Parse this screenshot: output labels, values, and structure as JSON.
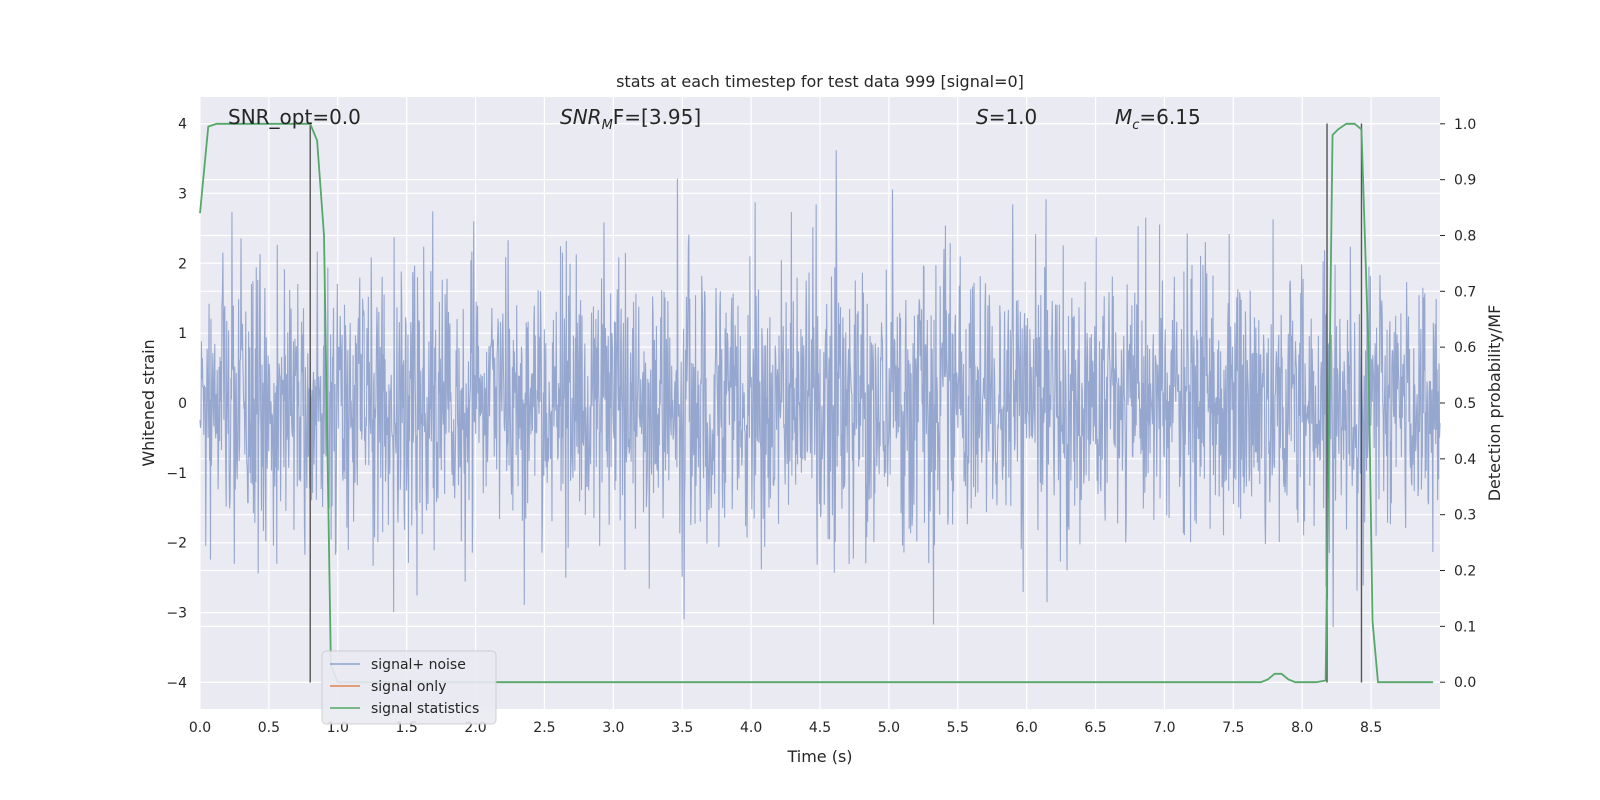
{
  "chart_data": {
    "type": "line",
    "title": "stats at each timestep for test data 999 [signal=0]",
    "xlabel": "Time (s)",
    "ylabel_left": "Whitened strain",
    "ylabel_right": "Detection probability/MF",
    "xlim": [
      0.0,
      9.0
    ],
    "ylim_left": [
      -4.38,
      4.38
    ],
    "ylim_right": [
      -0.048,
      1.048
    ],
    "x_ticks": [
      "0.0",
      "0.5",
      "1.0",
      "1.5",
      "2.0",
      "2.5",
      "3.0",
      "3.5",
      "4.0",
      "4.5",
      "5.0",
      "5.5",
      "6.0",
      "6.5",
      "7.0",
      "7.5",
      "8.0",
      "8.5"
    ],
    "y_ticks_left": [
      "4",
      "3",
      "2",
      "1",
      "0",
      "−1",
      "−2",
      "−3",
      "−4"
    ],
    "y_ticks_right": [
      "1.0",
      "0.9",
      "0.8",
      "0.7",
      "0.6",
      "0.5",
      "0.4",
      "0.3",
      "0.2",
      "0.1",
      "0.0"
    ],
    "grid": true,
    "legend_position": "lower-left",
    "annotations": {
      "snr_opt": "SNR_opt=0.0",
      "snr_mf_main": "SNR",
      "snr_mf_sub": "M",
      "snr_mf_rest": "F=[3.95]",
      "s_main": "S",
      "s_rest": "=1.0",
      "mc_main": "M",
      "mc_sub": "c",
      "mc_rest": "=6.15"
    },
    "series": [
      {
        "name": "signal+ noise",
        "color": "#8da0cb",
        "description_axis": "left",
        "amplitude_range": [
          -4.0,
          4.0
        ]
      },
      {
        "name": "signal only",
        "color": "#dd8452",
        "description_axis": "left"
      },
      {
        "name": "signal statistics",
        "color": "#55a868",
        "axis": "right",
        "x": [
          0.0,
          0.06,
          0.12,
          0.2,
          0.4,
          0.6,
          0.75,
          0.8,
          0.85,
          0.9,
          0.95,
          1.0,
          2.0,
          3.0,
          4.0,
          5.0,
          6.0,
          7.0,
          7.7,
          7.75,
          7.8,
          7.85,
          7.9,
          7.95,
          8.0,
          8.1,
          8.17,
          8.22,
          8.26,
          8.32,
          8.38,
          8.43,
          8.48,
          8.51,
          8.55,
          8.6,
          8.95
        ],
        "values": [
          0.84,
          0.995,
          1.0,
          1.0,
          1.0,
          1.0,
          1.0,
          1.0,
          0.97,
          0.8,
          0.03,
          0.0,
          0.0,
          0.0,
          0.0,
          0.0,
          0.0,
          0.0,
          0.0,
          0.005,
          0.015,
          0.015,
          0.005,
          0.0,
          0.0,
          0.0,
          0.003,
          0.98,
          0.99,
          1.0,
          1.0,
          0.99,
          0.6,
          0.11,
          0.0,
          0.0,
          0.0
        ]
      }
    ],
    "vertical_lines_x": [
      0.8,
      8.18,
      8.43
    ]
  }
}
